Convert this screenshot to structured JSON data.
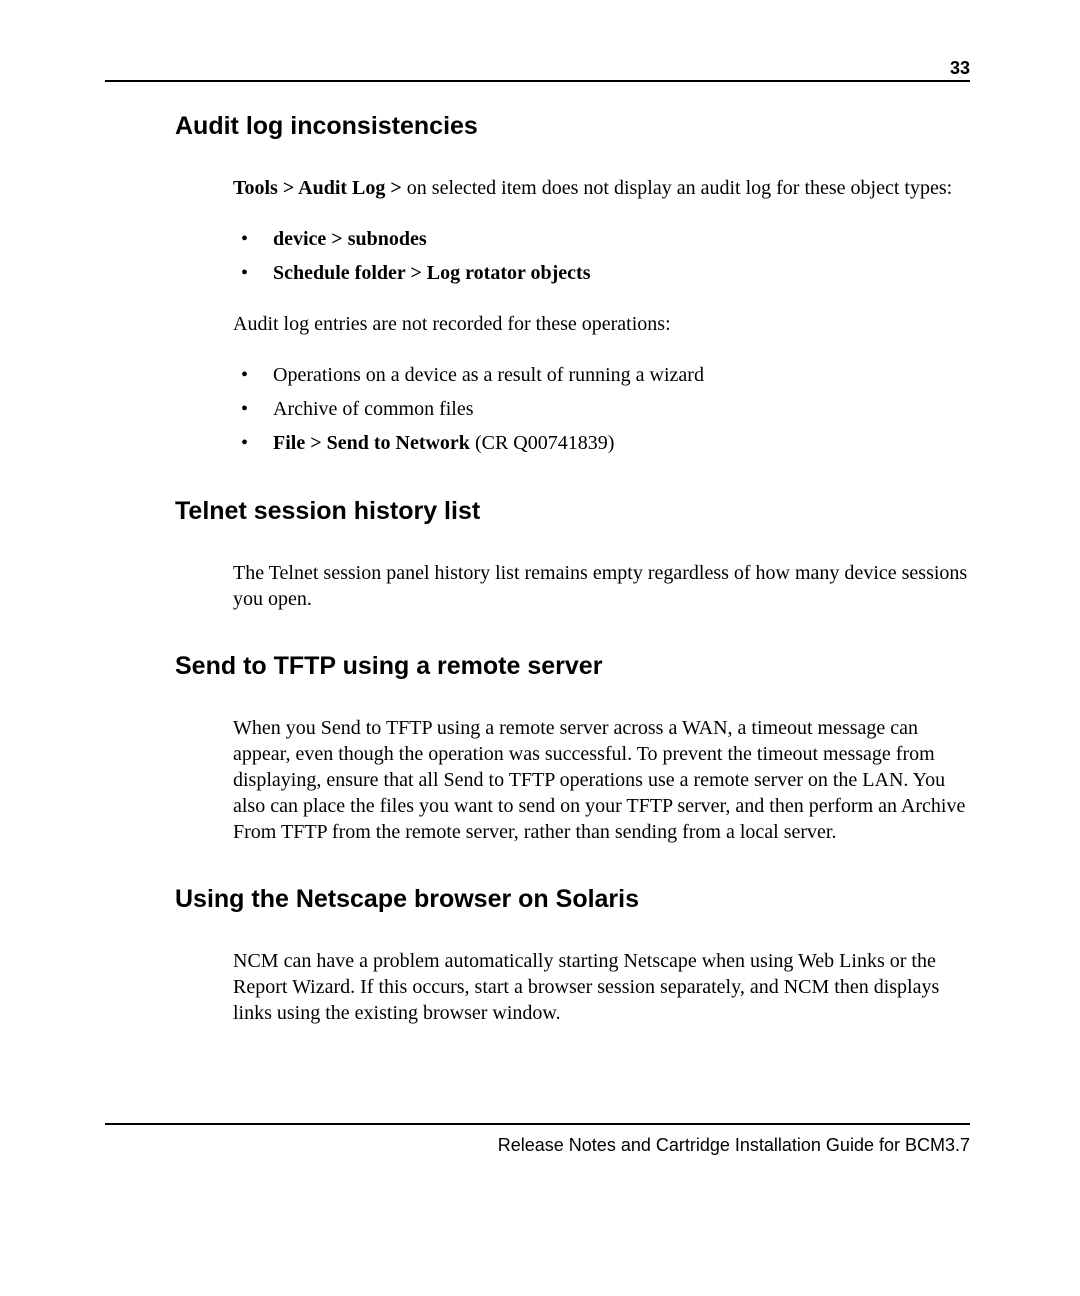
{
  "pageNumber": "33",
  "sections": {
    "s1": {
      "heading": "Audit log inconsistencies",
      "intro_bold": "Tools > Audit Log > ",
      "intro_rest": "on selected item does not display an audit log for these object types:",
      "list1_item1": "device > subnodes",
      "list1_item2": "Schedule folder > Log rotator objects",
      "para2": "Audit log entries are not recorded for these operations:",
      "list2_item1": "Operations on a device as a result of running a wizard",
      "list2_item2": "Archive of common files",
      "list2_item3_bold": "File > Send to Network",
      "list2_item3_rest": " (CR Q00741839)"
    },
    "s2": {
      "heading": "Telnet session history list",
      "body": "The Telnet session panel history list remains empty regardless of how many device sessions you open."
    },
    "s3": {
      "heading": "Send to TFTP using a remote server",
      "body": "When you Send to TFTP using a remote server across a WAN, a timeout message can appear, even though the operation was successful. To prevent the timeout message from displaying, ensure that all Send to TFTP operations use a remote server on the LAN. You also can place the files you want to send on your TFTP server, and then perform an Archive From TFTP from the remote server, rather than sending from a local server."
    },
    "s4": {
      "heading": "Using the Netscape browser on Solaris",
      "body": "NCM can have a problem automatically starting Netscape when using Web Links or the Report Wizard. If this occurs, start a browser session separately, and NCM then displays links using the existing browser window."
    }
  },
  "footer": "Release Notes and Cartridge Installation Guide for BCM3.7"
}
